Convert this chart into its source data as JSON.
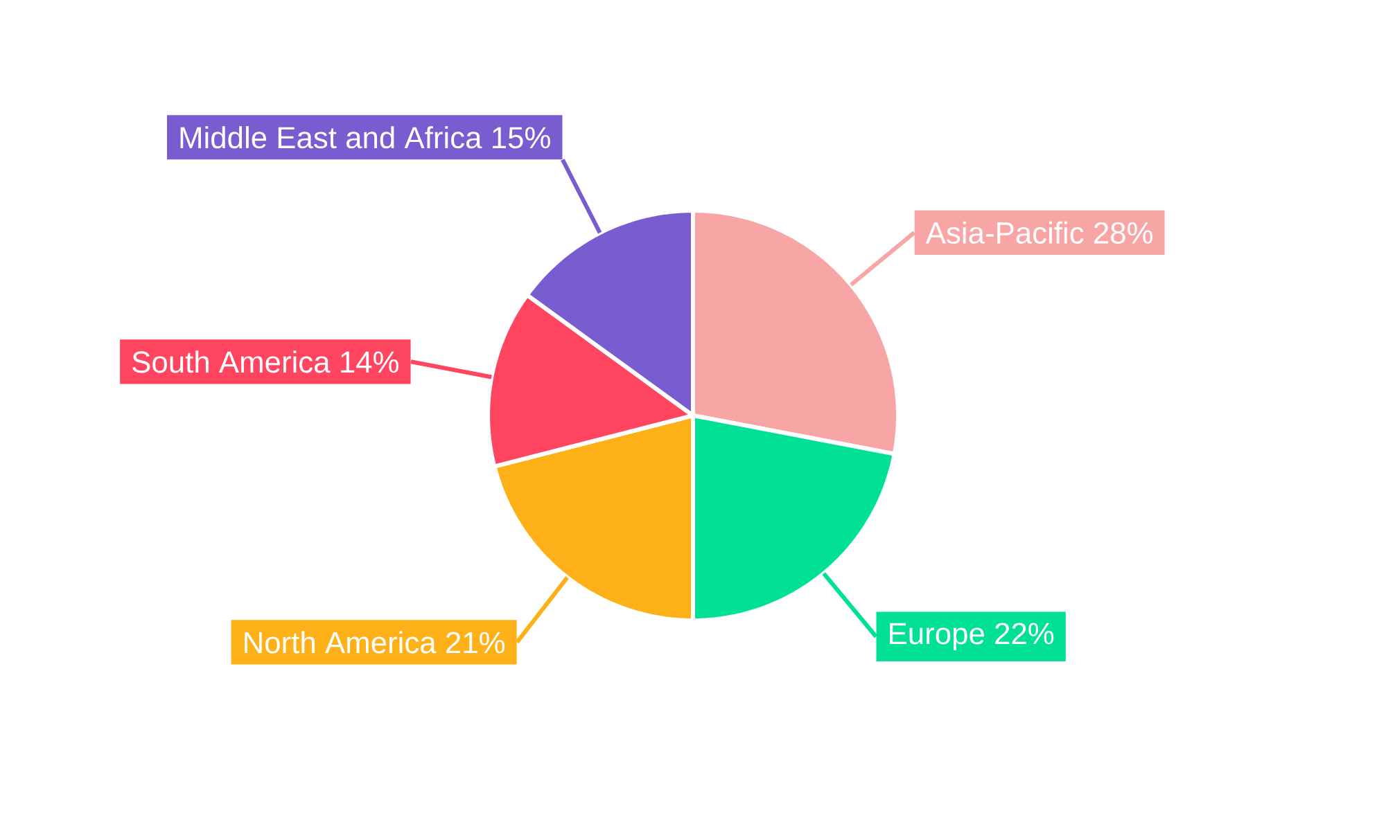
{
  "chart_data": {
    "type": "pie",
    "categories": [
      "Asia-Pacific",
      "Europe",
      "North America",
      "South America",
      "Middle East and Africa"
    ],
    "values": [
      28,
      22,
      21,
      14,
      15
    ],
    "value_labels": [
      "28%",
      "22%",
      "21%",
      "14%",
      "15%"
    ],
    "colors": [
      "#f8a5a5",
      "#00e096",
      "#feb019",
      "#ff4560",
      "#775dd0"
    ]
  }
}
